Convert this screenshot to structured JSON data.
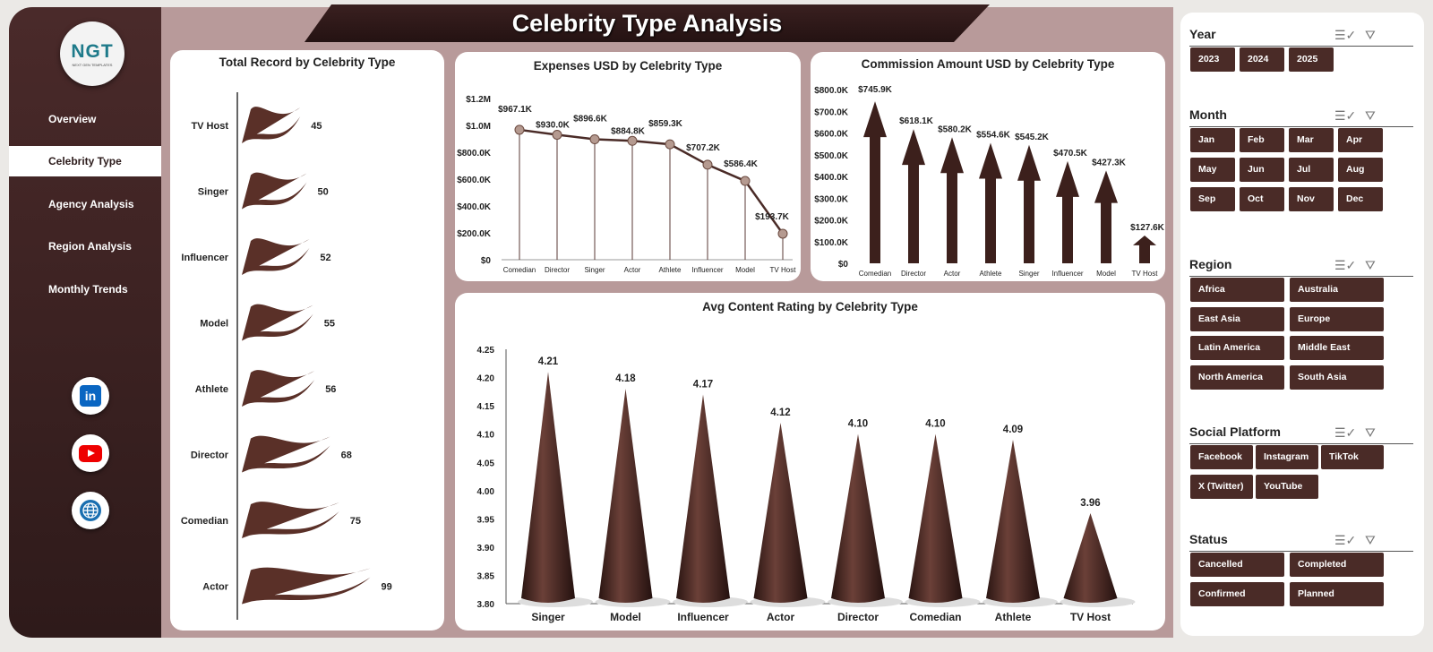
{
  "title": "Celebrity Type Analysis",
  "logo": {
    "text": "NGT",
    "subtitle": "NEXT GEN TEMPLATES"
  },
  "nav": [
    {
      "label": "Overview"
    },
    {
      "label": "Celebrity Type",
      "active": true
    },
    {
      "label": "Agency Analysis"
    },
    {
      "label": "Region Analysis"
    },
    {
      "label": "Monthly Trends"
    }
  ],
  "social": [
    "linkedin-icon",
    "youtube-icon",
    "globe-icon"
  ],
  "colors": {
    "brand": "#4a2b27",
    "background": "#b89a9a",
    "sidebar": "#2e1a1a"
  },
  "chart_data": [
    {
      "type": "bar",
      "title": "Total Record by Celebrity Type",
      "orientation": "horizontal",
      "categories": [
        "TV Host",
        "Singer",
        "Influencer",
        "Model",
        "Athlete",
        "Director",
        "Comedian",
        "Actor"
      ],
      "values": [
        45,
        50,
        52,
        55,
        56,
        68,
        75,
        99
      ]
    },
    {
      "type": "line",
      "title": "Expenses USD by Celebrity Type",
      "categories": [
        "Comedian",
        "Director",
        "Singer",
        "Actor",
        "Athlete",
        "Influencer",
        "Model",
        "TV Host"
      ],
      "values": [
        967100,
        930000,
        896600,
        884800,
        859300,
        707200,
        586400,
        193700
      ],
      "labels": [
        "$967.1K",
        "$930.0K",
        "$896.6K",
        "$884.8K",
        "$859.3K",
        "$707.2K",
        "$586.4K",
        "$193.7K"
      ],
      "yticks": [
        "$0",
        "$200.0K",
        "$400.0K",
        "$600.0K",
        "$800.0K",
        "$1.0M",
        "$1.2M"
      ],
      "ylim": [
        0,
        1200000
      ]
    },
    {
      "type": "bar",
      "title": "Commission Amount USD by Celebrity Type",
      "categories": [
        "Comedian",
        "Director",
        "Actor",
        "Athlete",
        "Singer",
        "Influencer",
        "Model",
        "TV Host"
      ],
      "values": [
        745900,
        618100,
        580200,
        554600,
        545200,
        470500,
        427300,
        127600
      ],
      "labels": [
        "$745.9K",
        "$618.1K",
        "$580.2K",
        "$554.6K",
        "$545.2K",
        "$470.5K",
        "$427.3K",
        "$127.6K"
      ],
      "yticks": [
        "$0",
        "$100.0K",
        "$200.0K",
        "$300.0K",
        "$400.0K",
        "$500.0K",
        "$600.0K",
        "$700.0K",
        "$800.0K"
      ],
      "ylim": [
        0,
        800000
      ]
    },
    {
      "type": "bar",
      "title": "Avg Content Rating by Celebrity Type",
      "categories": [
        "Singer",
        "Model",
        "Influencer",
        "Actor",
        "Director",
        "Comedian",
        "Athlete",
        "TV Host"
      ],
      "values": [
        4.21,
        4.18,
        4.17,
        4.12,
        4.1,
        4.1,
        4.09,
        3.96
      ],
      "labels": [
        "4.21",
        "4.18",
        "4.17",
        "4.12",
        "4.10",
        "4.10",
        "4.09",
        "3.96"
      ],
      "yticks": [
        "3.80",
        "3.85",
        "3.90",
        "3.95",
        "4.00",
        "4.05",
        "4.10",
        "4.15",
        "4.20",
        "4.25"
      ],
      "ylim": [
        3.8,
        4.25
      ]
    }
  ],
  "slicers": [
    {
      "title": "Year",
      "items": [
        "2023",
        "2024",
        "2025"
      ]
    },
    {
      "title": "Month",
      "items": [
        "Jan",
        "Feb",
        "Mar",
        "Apr",
        "May",
        "Jun",
        "Jul",
        "Aug",
        "Sep",
        "Oct",
        "Nov",
        "Dec"
      ]
    },
    {
      "title": "Region",
      "items": [
        "Africa",
        "Australia",
        "East Asia",
        "Europe",
        "Latin America",
        "Middle East",
        "North America",
        "South Asia"
      ]
    },
    {
      "title": "Social Platform",
      "items": [
        "Facebook",
        "Instagram",
        "TikTok",
        "X (Twitter)",
        "YouTube"
      ]
    },
    {
      "title": "Status",
      "items": [
        "Cancelled",
        "Completed",
        "Confirmed",
        "Planned"
      ]
    }
  ]
}
